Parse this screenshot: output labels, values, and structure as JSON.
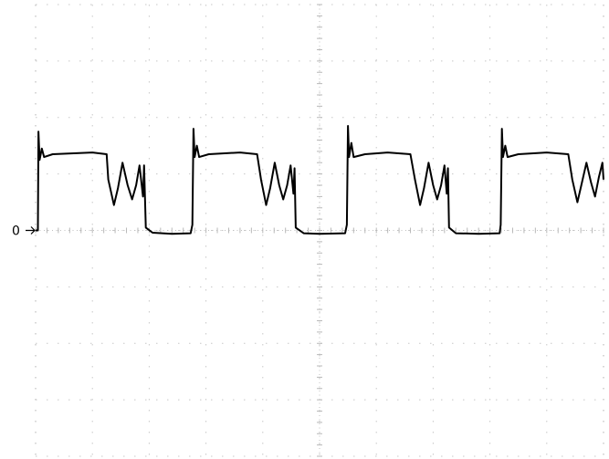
{
  "chart_data": {
    "type": "line",
    "title": "",
    "xlabel": "",
    "ylabel": "",
    "grid": true,
    "grid_divisions": {
      "x": 10,
      "y": 8
    },
    "ground_marker": "0",
    "xlim": [
      0,
      10
    ],
    "ylim": [
      -4,
      4
    ],
    "series": [
      {
        "color": "#000000",
        "points": [
          [
            0.0,
            0.0
          ],
          [
            0.04,
            0.0
          ],
          [
            0.05,
            1.75
          ],
          [
            0.07,
            1.25
          ],
          [
            0.11,
            1.45
          ],
          [
            0.15,
            1.3
          ],
          [
            0.3,
            1.35
          ],
          [
            1.0,
            1.38
          ],
          [
            1.25,
            1.35
          ],
          [
            1.28,
            0.9
          ],
          [
            1.38,
            0.45
          ],
          [
            1.45,
            0.75
          ],
          [
            1.53,
            1.2
          ],
          [
            1.62,
            0.8
          ],
          [
            1.7,
            0.55
          ],
          [
            1.77,
            0.8
          ],
          [
            1.83,
            1.15
          ],
          [
            1.89,
            0.6
          ],
          [
            1.91,
            1.15
          ],
          [
            1.94,
            0.05
          ],
          [
            2.06,
            -0.04
          ],
          [
            2.4,
            -0.06
          ],
          [
            2.73,
            -0.05
          ],
          [
            2.76,
            0.1
          ],
          [
            2.78,
            1.8
          ],
          [
            2.8,
            1.3
          ],
          [
            2.84,
            1.5
          ],
          [
            2.88,
            1.3
          ],
          [
            3.05,
            1.35
          ],
          [
            3.6,
            1.38
          ],
          [
            3.9,
            1.35
          ],
          [
            3.97,
            0.9
          ],
          [
            4.06,
            0.45
          ],
          [
            4.13,
            0.75
          ],
          [
            4.21,
            1.2
          ],
          [
            4.29,
            0.8
          ],
          [
            4.36,
            0.55
          ],
          [
            4.43,
            0.8
          ],
          [
            4.49,
            1.15
          ],
          [
            4.54,
            0.65
          ],
          [
            4.56,
            1.1
          ],
          [
            4.58,
            0.05
          ],
          [
            4.72,
            -0.05
          ],
          [
            5.0,
            -0.06
          ],
          [
            5.45,
            -0.05
          ],
          [
            5.48,
            0.1
          ],
          [
            5.5,
            1.85
          ],
          [
            5.52,
            1.3
          ],
          [
            5.56,
            1.55
          ],
          [
            5.6,
            1.3
          ],
          [
            5.8,
            1.35
          ],
          [
            6.2,
            1.38
          ],
          [
            6.6,
            1.35
          ],
          [
            6.68,
            0.9
          ],
          [
            6.77,
            0.45
          ],
          [
            6.84,
            0.75
          ],
          [
            6.92,
            1.2
          ],
          [
            7.0,
            0.8
          ],
          [
            7.07,
            0.55
          ],
          [
            7.14,
            0.8
          ],
          [
            7.2,
            1.15
          ],
          [
            7.24,
            0.65
          ],
          [
            7.26,
            1.1
          ],
          [
            7.28,
            0.05
          ],
          [
            7.4,
            -0.05
          ],
          [
            7.8,
            -0.06
          ],
          [
            8.17,
            -0.05
          ],
          [
            8.19,
            0.1
          ],
          [
            8.21,
            1.8
          ],
          [
            8.23,
            1.3
          ],
          [
            8.27,
            1.5
          ],
          [
            8.31,
            1.3
          ],
          [
            8.5,
            1.35
          ],
          [
            9.0,
            1.38
          ],
          [
            9.38,
            1.35
          ],
          [
            9.45,
            0.9
          ],
          [
            9.54,
            0.5
          ],
          [
            9.62,
            0.85
          ],
          [
            9.7,
            1.2
          ],
          [
            9.78,
            0.85
          ],
          [
            9.85,
            0.6
          ],
          [
            9.92,
            0.95
          ],
          [
            9.98,
            1.2
          ],
          [
            10.0,
            0.9
          ]
        ]
      }
    ]
  }
}
